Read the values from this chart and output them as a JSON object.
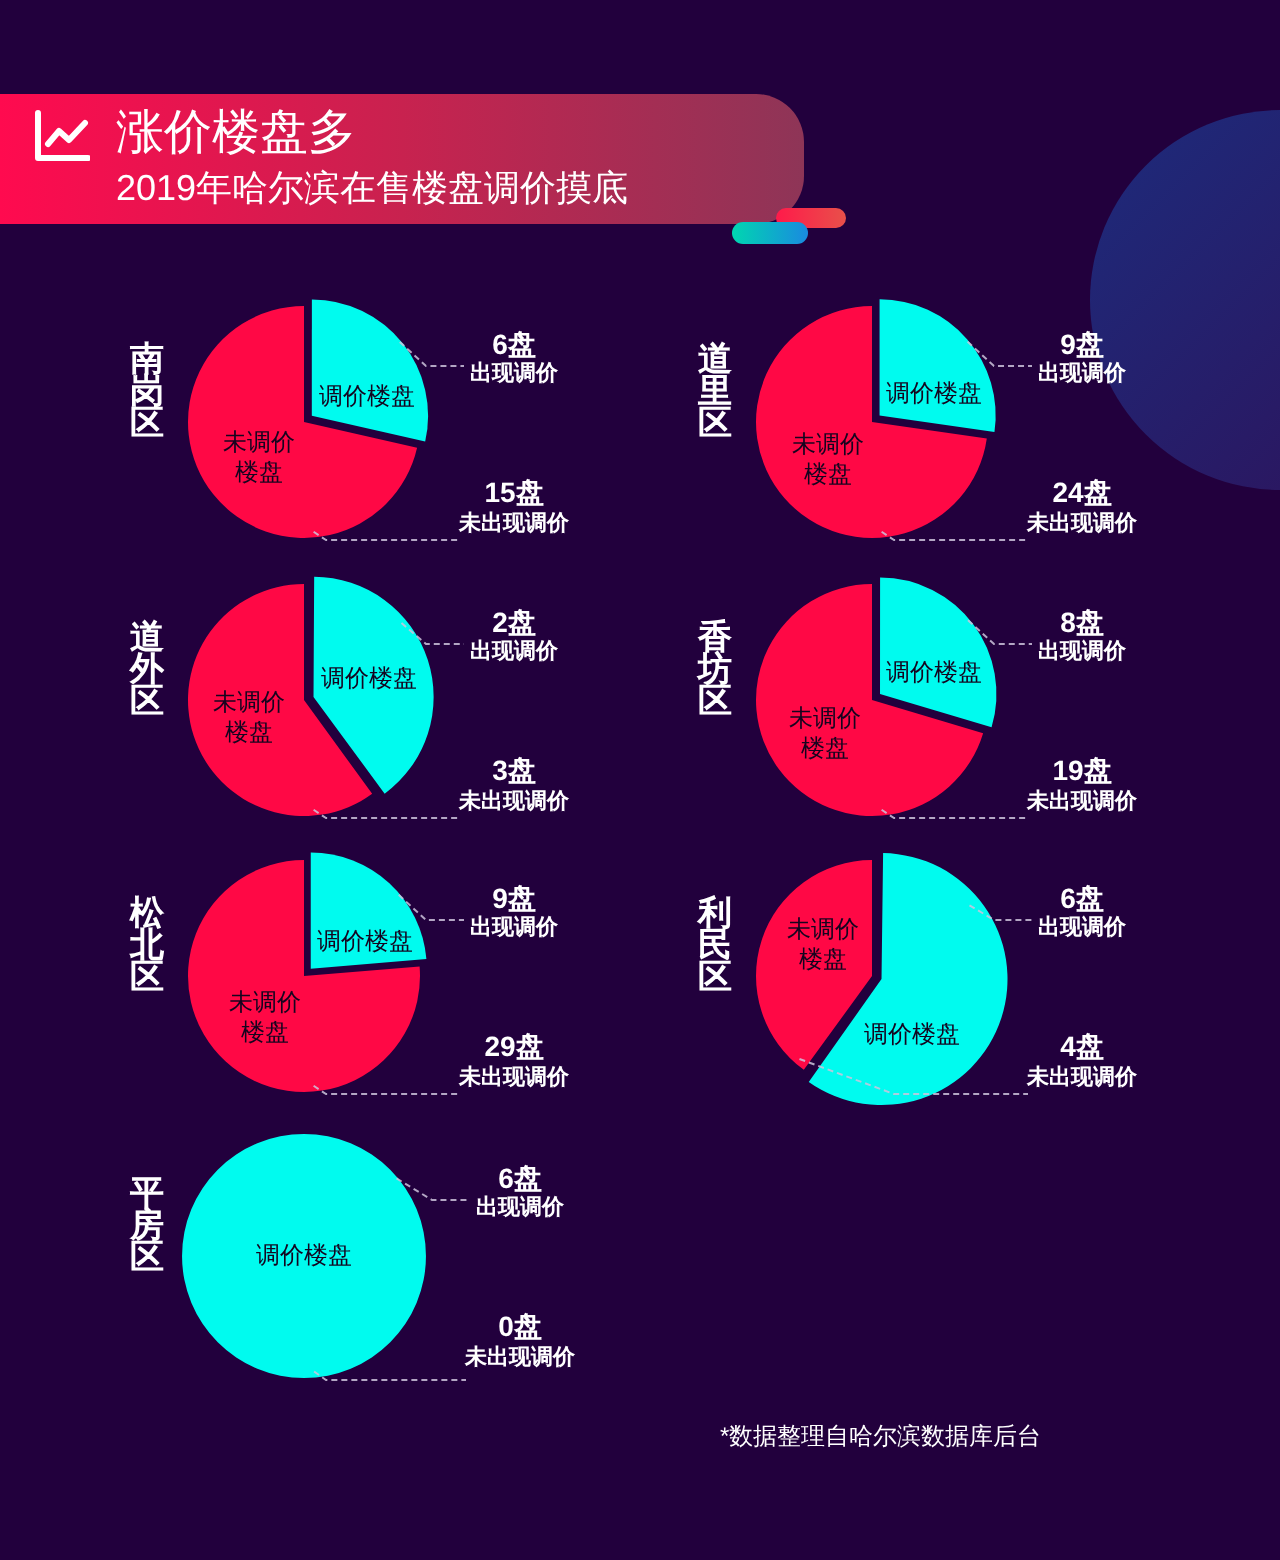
{
  "chart_data": [
    {
      "type": "other",
      "title": "涨价楼盘多",
      "subtitle": "2019年哈尔滨在售楼盘调价摸底"
    },
    {
      "type": "pie",
      "title": "南岗区",
      "categories": [
        "调价楼盘",
        "未调价楼盘"
      ],
      "values": [
        6,
        15
      ],
      "colors": [
        "#00fbef",
        "#ff0845"
      ],
      "value_labels": [
        "6盘出现调价",
        "15盘未出现调价"
      ]
    },
    {
      "type": "pie",
      "title": "道里区",
      "categories": [
        "调价楼盘",
        "未调价楼盘"
      ],
      "values": [
        9,
        24
      ],
      "colors": [
        "#00fbef",
        "#ff0845"
      ],
      "value_labels": [
        "9盘出现调价",
        "24盘未出现调价"
      ]
    },
    {
      "type": "pie",
      "title": "道外区",
      "categories": [
        "调价楼盘",
        "未调价楼盘"
      ],
      "values": [
        2,
        3
      ],
      "colors": [
        "#00fbef",
        "#ff0845"
      ],
      "value_labels": [
        "2盘出现调价",
        "3盘未出现调价"
      ]
    },
    {
      "type": "pie",
      "title": "香坊区",
      "categories": [
        "调价楼盘",
        "未调价楼盘"
      ],
      "values": [
        8,
        19
      ],
      "colors": [
        "#00fbef",
        "#ff0845"
      ],
      "value_labels": [
        "8盘出现调价",
        "19盘未出现调价"
      ]
    },
    {
      "type": "pie",
      "title": "松北区",
      "categories": [
        "调价楼盘",
        "未调价楼盘"
      ],
      "values": [
        9,
        29
      ],
      "colors": [
        "#00fbef",
        "#ff0845"
      ],
      "value_labels": [
        "9盘出现调价",
        "29盘未出现调价"
      ]
    },
    {
      "type": "pie",
      "title": "利民区",
      "categories": [
        "调价楼盘",
        "未调价楼盘"
      ],
      "values": [
        6,
        4
      ],
      "colors": [
        "#00fbef",
        "#ff0845"
      ],
      "value_labels": [
        "6盘出现调价",
        "4盘未出现调价"
      ]
    },
    {
      "type": "pie",
      "title": "平房区",
      "categories": [
        "调价楼盘",
        null
      ],
      "values": [
        6,
        0
      ],
      "colors": [
        "#00fbef",
        "#ff0845"
      ],
      "value_labels": [
        "6盘出现调价",
        "0盘未出现调价"
      ],
      "annotations": [
        "*数据整理自哈尔滨数据库后台"
      ]
    }
  ]
}
